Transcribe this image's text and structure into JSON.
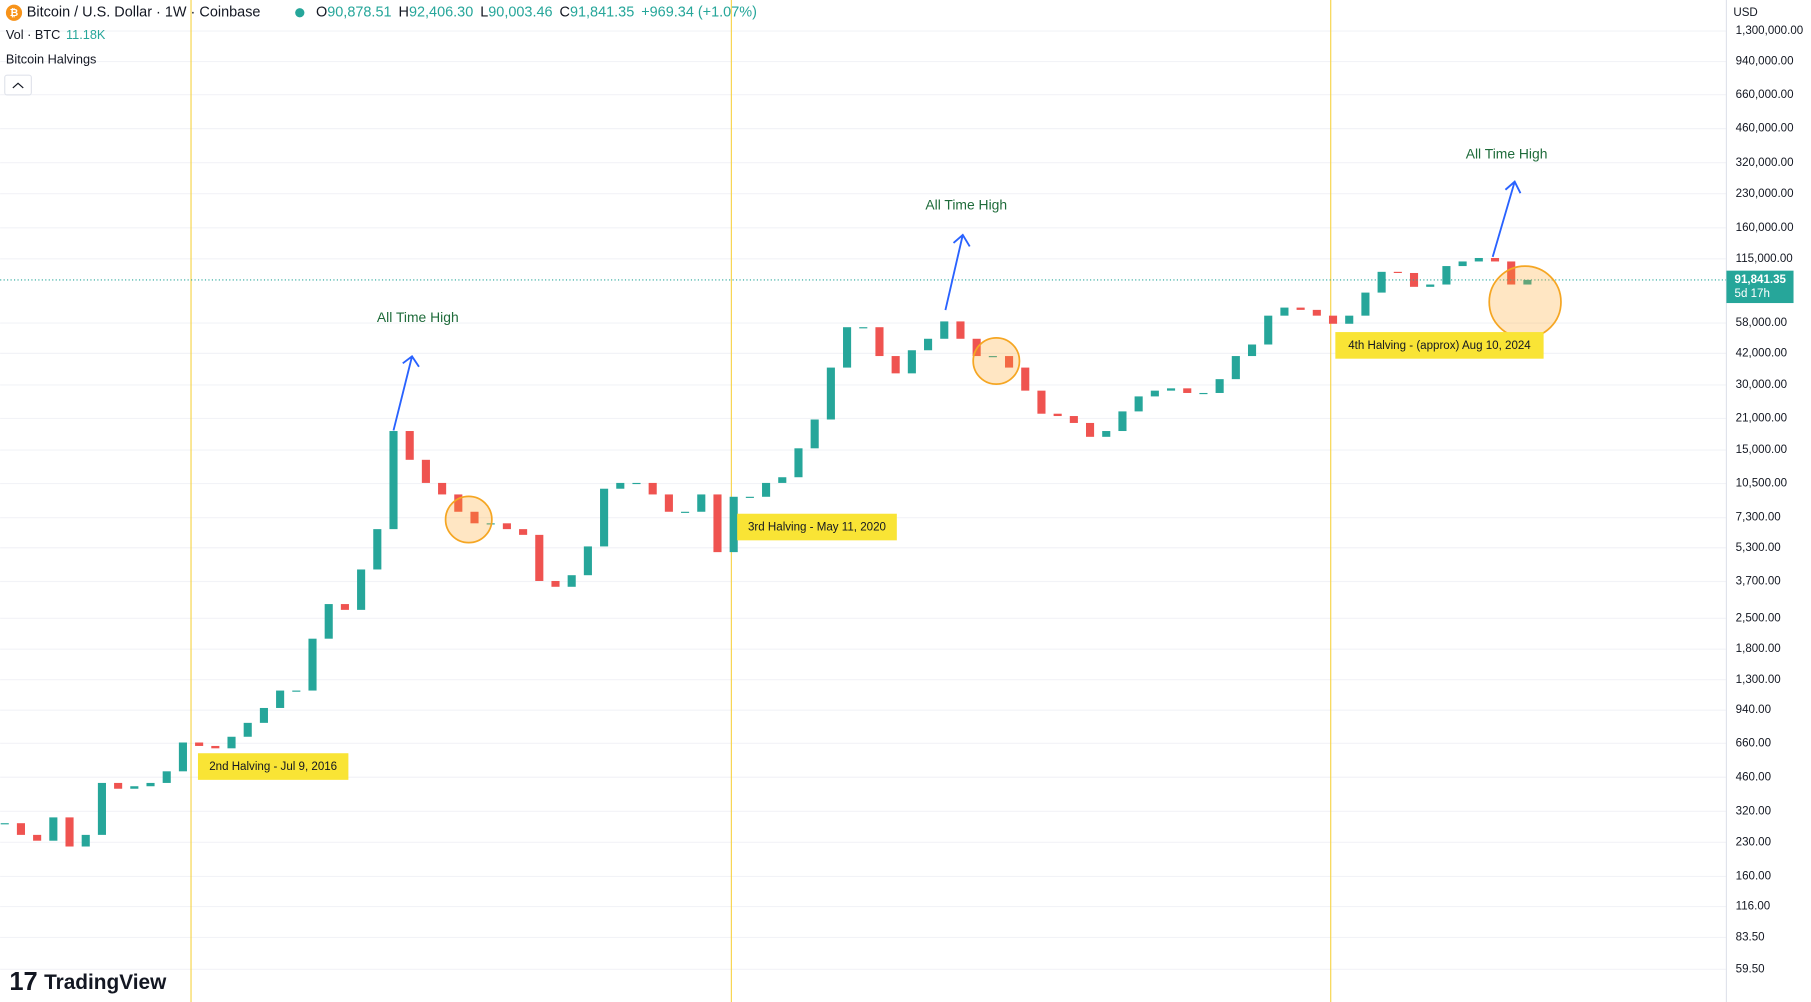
{
  "header": {
    "symbol": "Bitcoin / U.S. Dollar · 1W · Coinbase",
    "ohlc": [
      {
        "key": "O",
        "text": "90,878.51"
      },
      {
        "key": "H",
        "text": "92,406.30"
      },
      {
        "key": "L",
        "text": "90,003.46"
      },
      {
        "key": "C",
        "text": "91,841.35"
      }
    ],
    "change": "+969.34 (+1.07%)",
    "volume_label": "Vol · BTC",
    "volume_value": "11.18K",
    "indicator": "Bitcoin Halvings"
  },
  "currency": "USD",
  "brand": "TradingView",
  "chart_data": {
    "type": "candlestick",
    "log_scale": true,
    "grid": true,
    "up_color": "#26a69a",
    "down_color": "#ef5350",
    "values": [
      282,
      249,
      234,
      300,
      220,
      249,
      433,
      407,
      418,
      433,
      490,
      666,
      642,
      626,
      708,
      821,
      962,
      1158,
      1158,
      2012,
      2909,
      2735,
      4205,
      6462,
      18370,
      13520,
      10570,
      9350,
      7775,
      6875,
      6875,
      6462,
      6079,
      3720,
      3497,
      3956,
      5375,
      9937,
      10570,
      10570,
      9350,
      7775,
      7775,
      9350,
      5058,
      9120,
      9120,
      10570,
      11230,
      15280,
      20770,
      36100,
      55500,
      55500,
      40820,
      33950,
      43420,
      49070,
      59030,
      49070,
      40820,
      40820,
      36100,
      28240,
      22090,
      21550,
      20020,
      17270,
      18370,
      22640,
      26560,
      28240,
      28940,
      27550,
      27550,
      31920,
      40820,
      46160,
      62760,
      68390,
      66750,
      62760,
      57570,
      62760,
      80240,
      100090,
      98870,
      85320,
      87440,
      106430,
      111780,
      115990,
      111780,
      87440,
      91841.35
    ],
    "last_value_label": "91,841.35",
    "countdown": "5d 17h",
    "ylim": [
      42,
      1810000
    ],
    "yticks": [
      {
        "value": 1300000,
        "label": "1,300,000.00"
      },
      {
        "value": 940000,
        "label": "940,000.00"
      },
      {
        "value": 660000,
        "label": "660,000.00"
      },
      {
        "value": 460000,
        "label": "460,000.00"
      },
      {
        "value": 320000,
        "label": "320,000.00"
      },
      {
        "value": 230000,
        "label": "230,000.00"
      },
      {
        "value": 160000,
        "label": "160,000.00"
      },
      {
        "value": 115000,
        "label": "115,000.00"
      },
      {
        "value": 58000,
        "label": "58,000.00"
      },
      {
        "value": 42000,
        "label": "42,000.00"
      },
      {
        "value": 30000,
        "label": "30,000.00"
      },
      {
        "value": 21000,
        "label": "21,000.00"
      },
      {
        "value": 15000,
        "label": "15,000.00"
      },
      {
        "value": 10500,
        "label": "10,500.00"
      },
      {
        "value": 7300,
        "label": "7,300.00"
      },
      {
        "value": 5300,
        "label": "5,300.00"
      },
      {
        "value": 3700,
        "label": "3,700.00"
      },
      {
        "value": 2500,
        "label": "2,500.00"
      },
      {
        "value": 1800,
        "label": "1,800.00"
      },
      {
        "value": 1300,
        "label": "1,300.00"
      },
      {
        "value": 940,
        "label": "940.00"
      },
      {
        "value": 660,
        "label": "660.00"
      },
      {
        "value": 460,
        "label": "460.00"
      },
      {
        "value": 320,
        "label": "320.00"
      },
      {
        "value": 230,
        "label": "230.00"
      },
      {
        "value": 160,
        "label": "160.00"
      },
      {
        "value": 116,
        "label": "116.00"
      },
      {
        "value": 83.5,
        "label": "83.50"
      },
      {
        "value": 59.5,
        "label": "59.50"
      }
    ],
    "annotations": {
      "halvings": [
        "2nd Halving - Jul 9, 2016",
        "3rd Halving - May 11, 2020",
        "4th Halving - (approx) Aug 10, 2024"
      ],
      "ath": [
        "All Time High",
        "All Time High",
        "All Time High"
      ]
    }
  }
}
